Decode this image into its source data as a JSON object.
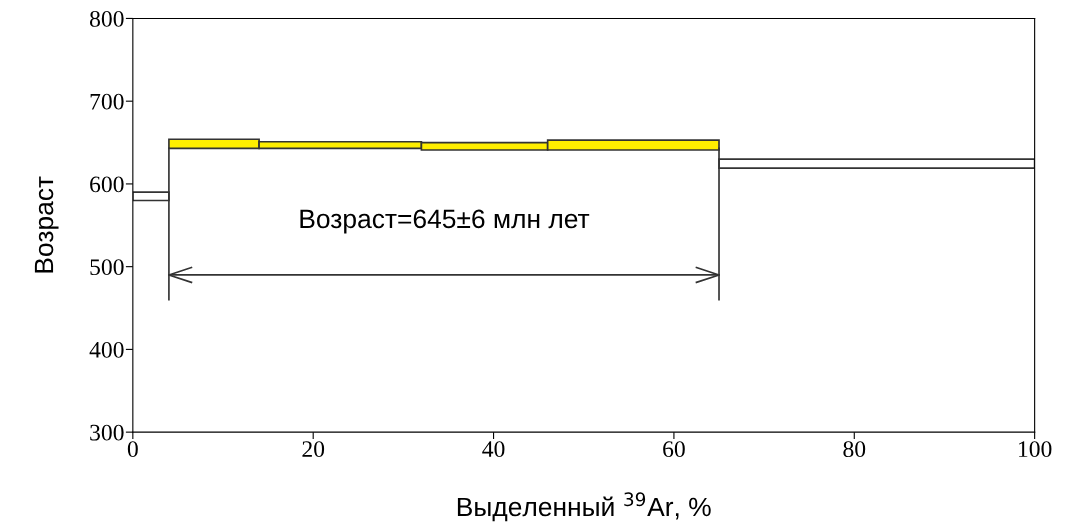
{
  "chart_data": {
    "type": "histogram",
    "bins": [
      0,
      4,
      14,
      32,
      46,
      65,
      100
    ],
    "base": [
      580,
      643,
      643,
      641,
      641,
      619
    ],
    "values": [
      10,
      11,
      8,
      9,
      12,
      11
    ],
    "colors": [
      "#ffffff",
      "#ffee00",
      "#ffee00",
      "#ffee00",
      "#ffee00",
      "#ffffff"
    ],
    "xlabel": "Выделенный $^{39}$Ar, %",
    "ylabel": "Возраст",
    "annotations": [
      "Возраст=645±6 млн лет"
    ],
    "xlim": [
      0,
      100
    ],
    "ylim": [
      300,
      800
    ],
    "xticks": [
      0,
      20,
      40,
      60,
      80,
      100
    ],
    "yticks": [
      300,
      400,
      500,
      600,
      700,
      800
    ],
    "series": [
      {
        "type": "line",
        "x": [
          4,
          65
        ],
        "values": [
          490,
          490
        ],
        "color": "#333333"
      }
    ],
    "grid": false
  }
}
